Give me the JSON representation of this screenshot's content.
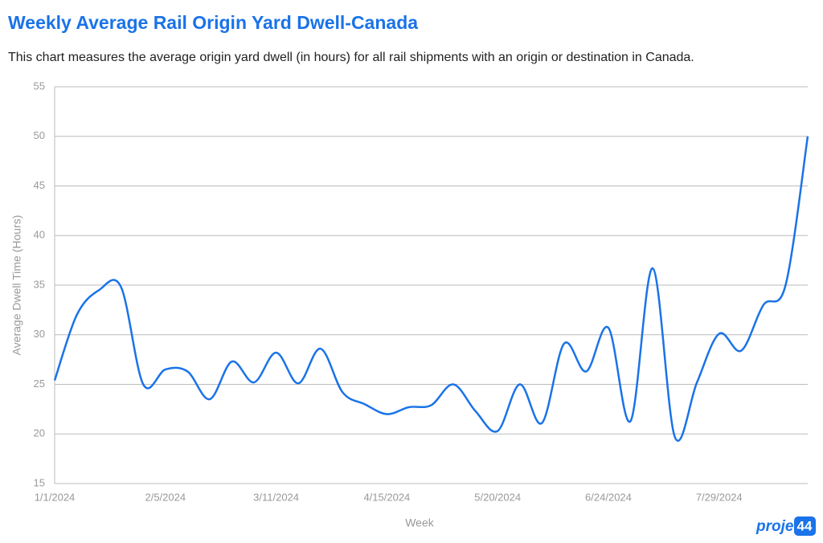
{
  "chart_data": {
    "type": "line",
    "title": "Weekly Average Rail Origin Yard Dwell-Canada",
    "subtitle": "This chart measures the average origin yard dwell (in hours) for all rail shipments with an origin or destination in Canada.",
    "x_label": "Week",
    "y_label": "Average Dwell Time (Hours)",
    "categories": [
      "1/1/2024",
      null,
      null,
      null,
      null,
      "2/5/2024",
      null,
      null,
      null,
      null,
      "3/11/2024",
      null,
      null,
      null,
      null,
      "4/15/2024",
      null,
      null,
      null,
      null,
      "5/20/2024",
      null,
      null,
      null,
      null,
      "6/24/2024",
      null,
      null,
      null,
      null,
      "7/29/2024",
      null,
      null,
      null,
      null
    ],
    "series": [
      {
        "name": "Average Dwell Time",
        "color": "#1a73e8",
        "values": [
          25.4,
          32,
          34.5,
          34.8,
          25,
          26.5,
          26.3,
          23.5,
          27.3,
          25.2,
          28.2,
          25.1,
          28.6,
          24.2,
          23,
          22,
          22.7,
          22.9,
          25,
          22.3,
          20.3,
          25,
          21.1,
          29.1,
          26.3,
          30.7,
          21.3,
          36.7,
          19.7,
          25.2,
          30.1,
          28.4,
          33,
          35,
          50
        ]
      }
    ],
    "ylim": [
      15,
      55
    ],
    "yticks": [
      15,
      20,
      25,
      30,
      35,
      40,
      45,
      50,
      55
    ],
    "grid": true,
    "logo": {
      "text": "project",
      "badge": "44"
    }
  }
}
